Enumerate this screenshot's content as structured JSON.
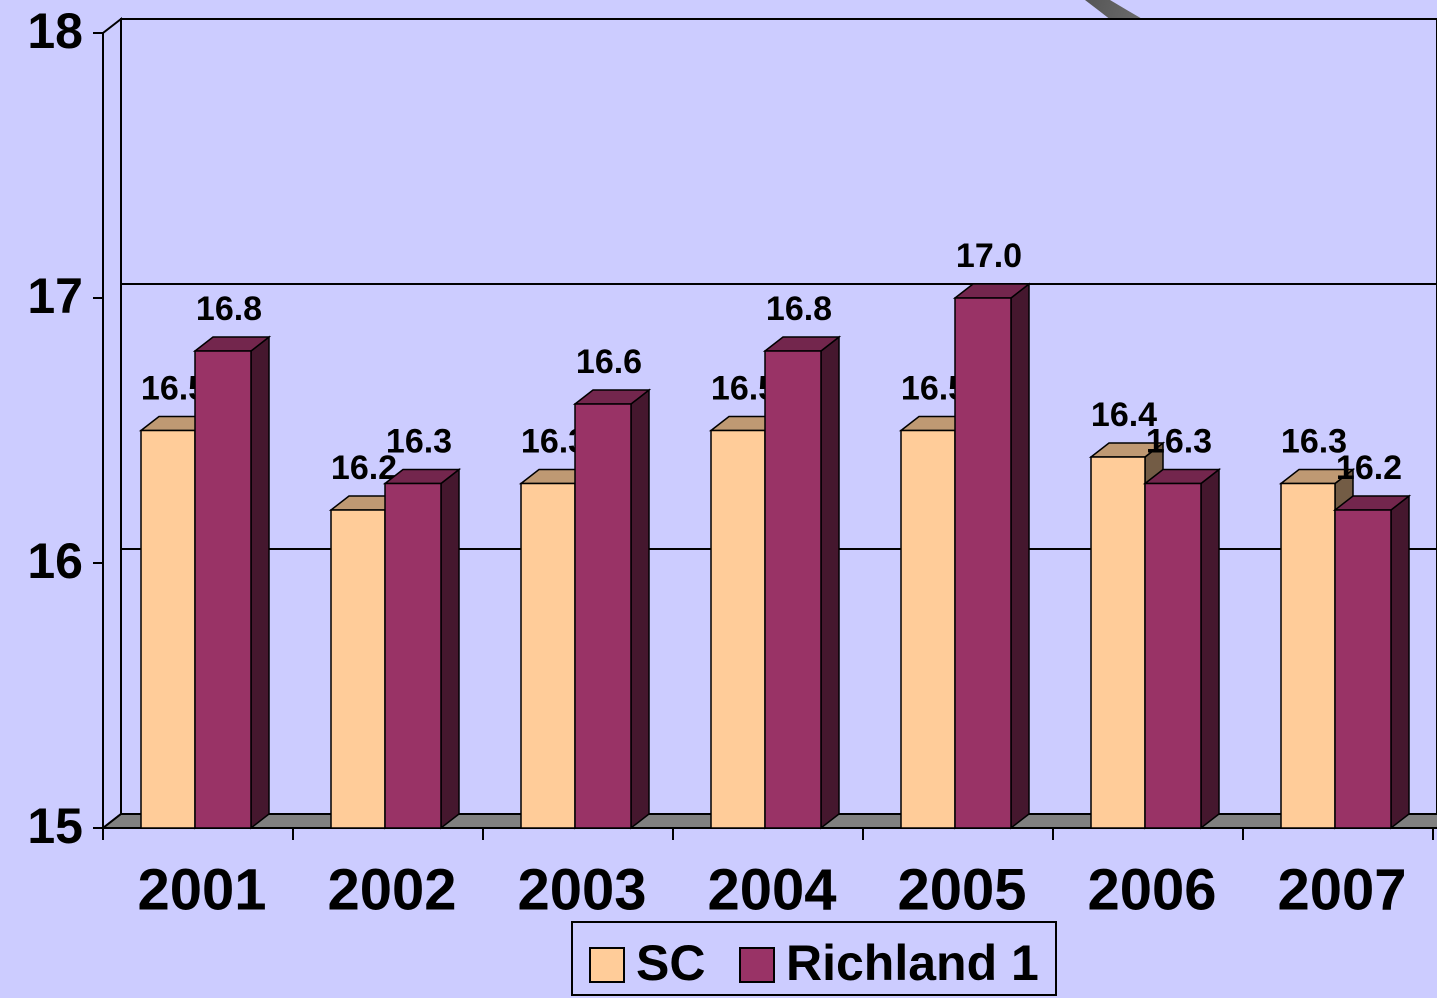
{
  "chart_data": {
    "type": "bar",
    "categories": [
      "2001",
      "2002",
      "2003",
      "2004",
      "2005",
      "2006",
      "2007"
    ],
    "series": [
      {
        "name": "SC",
        "color": "#ffcc99",
        "values": [
          16.5,
          16.2,
          16.3,
          16.5,
          16.5,
          16.4,
          16.3
        ],
        "value_labels": [
          "16.5",
          "16.2",
          "16.3",
          "16.5",
          "16.5",
          "16.4",
          "16.3"
        ]
      },
      {
        "name": "Richland 1",
        "color": "#993366",
        "values": [
          16.8,
          16.3,
          16.6,
          16.8,
          17.0,
          16.3,
          16.2
        ],
        "value_labels": [
          "16.8",
          "16.3",
          "16.6",
          "16.8",
          "17.0",
          "16.3",
          "16.2"
        ]
      }
    ],
    "ylim": [
      15,
      18
    ],
    "yticks": [
      15,
      16,
      17,
      18
    ],
    "grid": true,
    "legend": "bottom"
  }
}
